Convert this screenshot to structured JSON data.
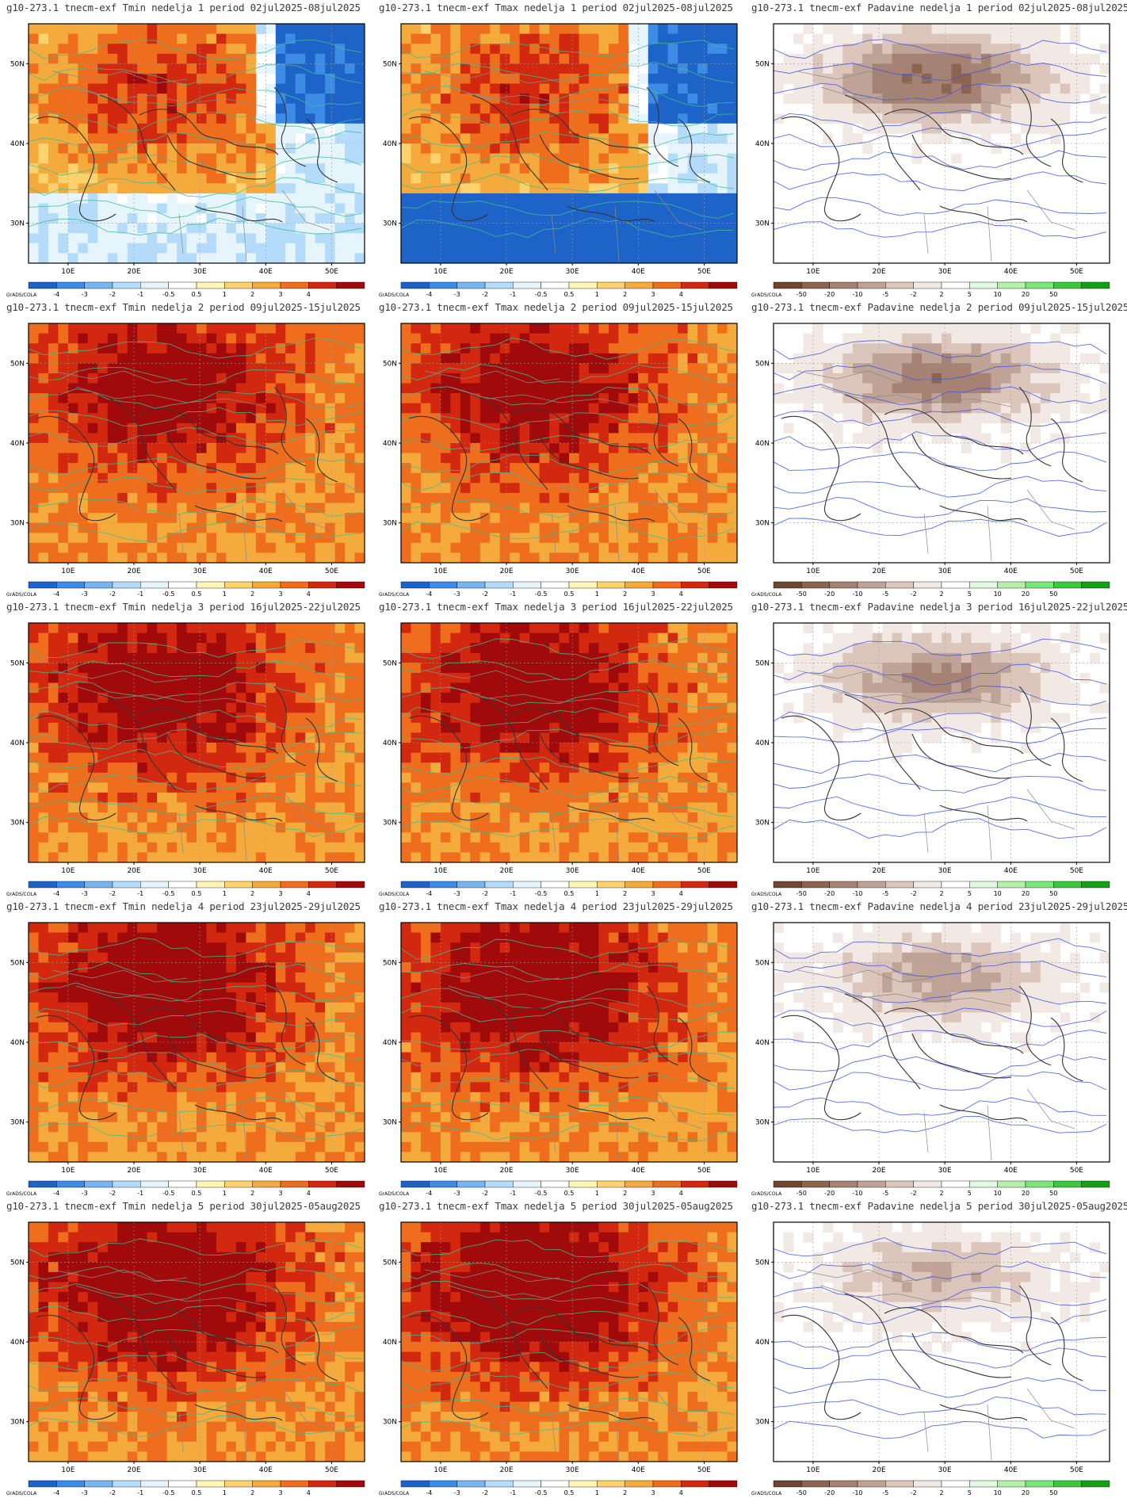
{
  "source_label": "GrADS/COLA",
  "axis_labels": {
    "lon": [
      "10E",
      "20E",
      "30E",
      "40E",
      "50E"
    ],
    "lat": [
      "50N",
      "40N",
      "30N"
    ]
  },
  "scales": {
    "temperature": {
      "ticks": [
        "-4",
        "-3",
        "-2",
        "-1",
        "-0.5",
        "0.5",
        "1",
        "2",
        "3",
        "4"
      ],
      "colors": [
        "#1e64c8",
        "#3c8ce6",
        "#78b4f0",
        "#b4dcfa",
        "#e6f5fc",
        "#ffffff",
        "#fff5b4",
        "#ffd26e",
        "#f5aa3c",
        "#ee6e1e",
        "#d2280f",
        "#a00a0a"
      ]
    },
    "precip": {
      "ticks": [
        "-50",
        "-20",
        "-10",
        "-5",
        "-2",
        "2",
        "5",
        "10",
        "20",
        "50"
      ],
      "colors": [
        "#6e4632",
        "#8c6450",
        "#a58273",
        "#bfa396",
        "#dcc6bb",
        "#f3e9e4",
        "#ffffff",
        "#e1fae1",
        "#b4f0aa",
        "#78e678",
        "#3cc83c",
        "#14a014"
      ]
    }
  },
  "panels": [
    {
      "title": "g10-273.1 tnecm-exf Tmin nedelja 1 period 02jul2025-08jul2025",
      "variable": "Tmin",
      "week": 1
    },
    {
      "title": "g10-273.1 tnecm-exf Tmax nedelja 1 period 02jul2025-08jul2025",
      "variable": "Tmax",
      "week": 1
    },
    {
      "title": "g10-273.1 tnecm-exf Padavine nedelja 1 period 02jul2025-08jul2025",
      "variable": "Padavine",
      "week": 1
    },
    {
      "title": "g10-273.1 tnecm-exf Tmin nedelja 2 period 09jul2025-15jul2025",
      "variable": "Tmin",
      "week": 2
    },
    {
      "title": "g10-273.1 tnecm-exf Tmax nedelja 2 period 09jul2025-15jul2025",
      "variable": "Tmax",
      "week": 2
    },
    {
      "title": "g10-273.1 tnecm-exf Padavine nedelja 2 period 09jul2025-15jul2025",
      "variable": "Padavine",
      "week": 2
    },
    {
      "title": "g10-273.1 tnecm-exf Tmin nedelja 3 period 16jul2025-22jul2025",
      "variable": "Tmin",
      "week": 3
    },
    {
      "title": "g10-273.1 tnecm-exf Tmax nedelja 3 period 16jul2025-22jul2025",
      "variable": "Tmax",
      "week": 3
    },
    {
      "title": "g10-273.1 tnecm-exf Padavine nedelja 3 period 16jul2025-22jul2025",
      "variable": "Padavine",
      "week": 3
    },
    {
      "title": "g10-273.1 tnecm-exf Tmin nedelja 4 period 23jul2025-29jul2025",
      "variable": "Tmin",
      "week": 4
    },
    {
      "title": "g10-273.1 tnecm-exf Tmax nedelja 4 period 23jul2025-29jul2025",
      "variable": "Tmax",
      "week": 4
    },
    {
      "title": "g10-273.1 tnecm-exf Padavine nedelja 4 period 23jul2025-29jul2025",
      "variable": "Padavine",
      "week": 4
    },
    {
      "title": "g10-273.1 tnecm-exf Tmin nedelja 5 period 30jul2025-05aug2025",
      "variable": "Tmin",
      "week": 5
    },
    {
      "title": "g10-273.1 tnecm-exf Tmax nedelja 5 period 30jul2025-05aug2025",
      "variable": "Tmax",
      "week": 5
    },
    {
      "title": "g10-273.1 tnecm-exf Padavine nedelja 5 period 30jul2025-05aug2025",
      "variable": "Padavine",
      "week": 5
    }
  ]
}
